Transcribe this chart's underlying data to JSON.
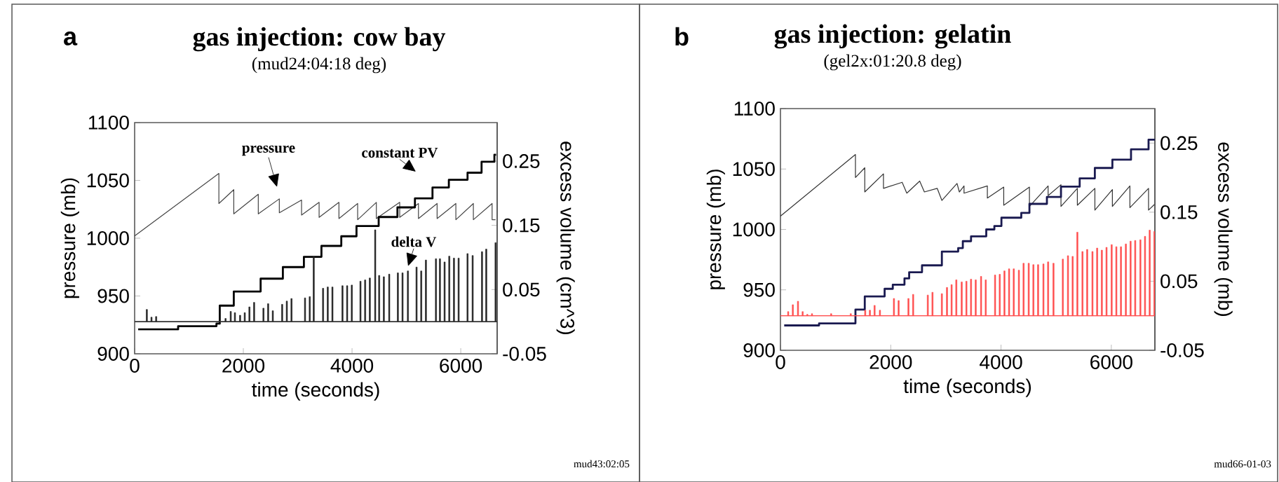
{
  "chart_data": [
    {
      "type": "line",
      "title": "gas injection: cow bay",
      "subtitle": "(mud24:04:18 deg)",
      "xlabel": "time (seconds)",
      "ylabel": "pressure (mb)",
      "y2label": "excess volume (cm^3)",
      "xlim": [
        0,
        6670
      ],
      "xticks": [
        0,
        2000,
        4000,
        6000
      ],
      "ylim": [
        900,
        1100
      ],
      "yticks": [
        900,
        950,
        1000,
        1050,
        1100
      ],
      "y2lim": [
        -0.05,
        0.31
      ],
      "y2ticks": [
        -0.05,
        0.05,
        0.15,
        0.25
      ],
      "annotations": [
        "a",
        "pressure",
        "constant PV",
        "delta V",
        "mud43:02:05"
      ],
      "ref_lines": [
        {
          "axis": "y2",
          "value": 0,
          "color": "#333333"
        }
      ],
      "series": [
        {
          "color": "#444444",
          "x": [
            0,
            1550,
            1550,
            1824,
            1824,
            2275,
            2275,
            2662,
            2662,
            3071,
            3071,
            3394,
            3394,
            3759,
            3759,
            4103,
            4103,
            4447,
            4447,
            4877,
            4877,
            5222,
            5222,
            5565,
            5565,
            5910,
            5910,
            6232,
            6232,
            6577,
            6577,
            6640
          ],
          "values": [
            1002,
            1056,
            1030,
            1042,
            1021,
            1038,
            1021,
            1034,
            1022,
            1033,
            1020,
            1031,
            1018,
            1031,
            1017,
            1030,
            1016,
            1031,
            1017,
            1031,
            1018,
            1030,
            1017,
            1030,
            1017,
            1030,
            1016,
            1030,
            1016,
            1030,
            1016,
            1016
          ]
        },
        {
          "type": "step",
          "axis": "y2",
          "color": "#000000",
          "x": [
            65,
            800,
            1505,
            1566,
            1824,
            2318,
            2727,
            3114,
            3437,
            3802,
            4082,
            4490,
            4835,
            5157,
            5480,
            5781,
            6125,
            6383,
            6619,
            6650
          ],
          "values": [
            -0.012,
            -0.007,
            -0.003,
            0.025,
            0.047,
            0.067,
            0.085,
            0.101,
            0.118,
            0.133,
            0.149,
            0.163,
            0.178,
            0.192,
            0.209,
            0.221,
            0.232,
            0.249,
            0.26,
            0.26
          ]
        },
        {
          "type": "bar",
          "axis": "y2",
          "color": "#222222",
          "x": [
            224,
            310,
            396,
            1673,
            1768,
            1845,
            1940,
            2026,
            2112,
            2198,
            2370,
            2456,
            2542,
            2714,
            2800,
            2886,
            3135,
            3222,
            3295,
            3467,
            3553,
            3639,
            3824,
            3910,
            3996,
            4155,
            4241,
            4327,
            4426,
            4499,
            4585,
            4684,
            4843,
            4929,
            5028,
            5187,
            5273,
            5359,
            5544,
            5617,
            5703,
            5789,
            5875,
            5961,
            6125,
            6219,
            6391,
            6469,
            6641
          ],
          "values": [
            0.019,
            0.007,
            0.008,
            0.005,
            0.016,
            0.014,
            0.01,
            0.014,
            0.023,
            0.03,
            0.021,
            0.028,
            0.017,
            0.027,
            0.032,
            0.036,
            0.037,
            0.039,
            0.101,
            0.052,
            0.054,
            0.054,
            0.056,
            0.056,
            0.057,
            0.063,
            0.065,
            0.068,
            0.143,
            0.072,
            0.07,
            0.074,
            0.076,
            0.076,
            0.079,
            0.085,
            0.079,
            0.096,
            0.098,
            0.098,
            0.093,
            0.102,
            0.099,
            0.099,
            0.106,
            0.103,
            0.109,
            0.113,
            0.123
          ]
        }
      ]
    },
    {
      "type": "line",
      "title": "gas injection: gelatin",
      "subtitle": "(gel2x:01:20.8 deg)",
      "xlabel": "time (seconds)",
      "ylabel": "pressure (mb)",
      "y2label": "excess volume (mb)",
      "xlim": [
        0,
        6790
      ],
      "xticks": [
        0,
        2000,
        4000,
        6000
      ],
      "ylim": [
        900,
        1100
      ],
      "yticks": [
        900,
        950,
        1000,
        1050,
        1100
      ],
      "y2lim": [
        -0.05,
        0.3
      ],
      "y2ticks": [
        -0.05,
        0.05,
        0.15,
        0.25
      ],
      "annotations": [
        "b",
        "mud66-01-03"
      ],
      "ref_lines": [
        {
          "axis": "y2",
          "value": 0,
          "color": "#ff4d4d"
        }
      ],
      "series": [
        {
          "color": "#333333",
          "x": [
            0,
            1360,
            1360,
            1529,
            1529,
            1868,
            1868,
            2207,
            2291,
            2525,
            2610,
            2842,
            2927,
            3202,
            3244,
            3329,
            3329,
            3752,
            3752,
            4049,
            4049,
            4515,
            4515,
            4854,
            4854,
            5087,
            5087,
            5384,
            5384,
            5702,
            5702,
            6019,
            6019,
            6337,
            6337,
            6675,
            6675,
            6790
          ],
          "values": [
            1011,
            1062,
            1043,
            1051,
            1031,
            1046,
            1034,
            1039,
            1030,
            1040,
            1031,
            1034,
            1024,
            1038,
            1031,
            1036,
            1030,
            1036,
            1026,
            1035,
            1020,
            1035,
            1019,
            1036,
            1028,
            1037,
            1019,
            1034,
            1020,
            1034,
            1016,
            1033,
            1019,
            1036,
            1018,
            1034,
            1016,
            1021
          ]
        },
        {
          "type": "step",
          "axis": "y2",
          "color": "#1a1a50",
          "x": [
            68,
            700,
            1360,
            1529,
            1889,
            2037,
            2249,
            2334,
            2567,
            2927,
            3223,
            3307,
            3456,
            3732,
            3879,
            4007,
            4367,
            4515,
            4832,
            5087,
            5426,
            5701,
            6019,
            6357,
            6675,
            6790
          ],
          "values": [
            -0.014,
            -0.011,
            0.009,
            0.028,
            0.039,
            0.045,
            0.054,
            0.063,
            0.073,
            0.093,
            0.098,
            0.108,
            0.115,
            0.125,
            0.13,
            0.142,
            0.149,
            0.162,
            0.172,
            0.187,
            0.199,
            0.214,
            0.226,
            0.241,
            0.255,
            0.255
          ]
        },
        {
          "type": "bar",
          "axis": "y2",
          "color": "#ff4d4d",
          "x": [
            140,
            225,
            318,
            403,
            487,
            572,
            919,
            1275,
            1537,
            1622,
            1707,
            1804,
            2058,
            2143,
            2321,
            2406,
            2672,
            2757,
            2927,
            3020,
            3104,
            3189,
            3287,
            3372,
            3456,
            3541,
            3638,
            3723,
            3892,
            3977,
            4062,
            4146,
            4231,
            4324,
            4409,
            4502,
            4587,
            4672,
            4769,
            4854,
            4951,
            5121,
            5214,
            5299,
            5384,
            5477,
            5562,
            5658,
            5743,
            5828,
            5913,
            6006,
            6091,
            6175,
            6264,
            6349,
            6433,
            6527,
            6611,
            6696,
            6781
          ],
          "values": [
            0.006,
            0.016,
            0.021,
            0.006,
            0.002,
            0.003,
            0.003,
            0.003,
            0.008,
            0.008,
            0.015,
            0.008,
            0.025,
            0.022,
            0.025,
            0.031,
            0.03,
            0.034,
            0.032,
            0.041,
            0.045,
            0.052,
            0.049,
            0.05,
            0.053,
            0.052,
            0.057,
            0.052,
            0.059,
            0.06,
            0.065,
            0.068,
            0.068,
            0.066,
            0.076,
            0.076,
            0.074,
            0.074,
            0.075,
            0.078,
            0.076,
            0.082,
            0.087,
            0.086,
            0.121,
            0.093,
            0.096,
            0.093,
            0.098,
            0.095,
            0.099,
            0.103,
            0.1,
            0.1,
            0.104,
            0.108,
            0.109,
            0.11,
            0.115,
            0.124,
            0.122
          ]
        }
      ]
    }
  ]
}
